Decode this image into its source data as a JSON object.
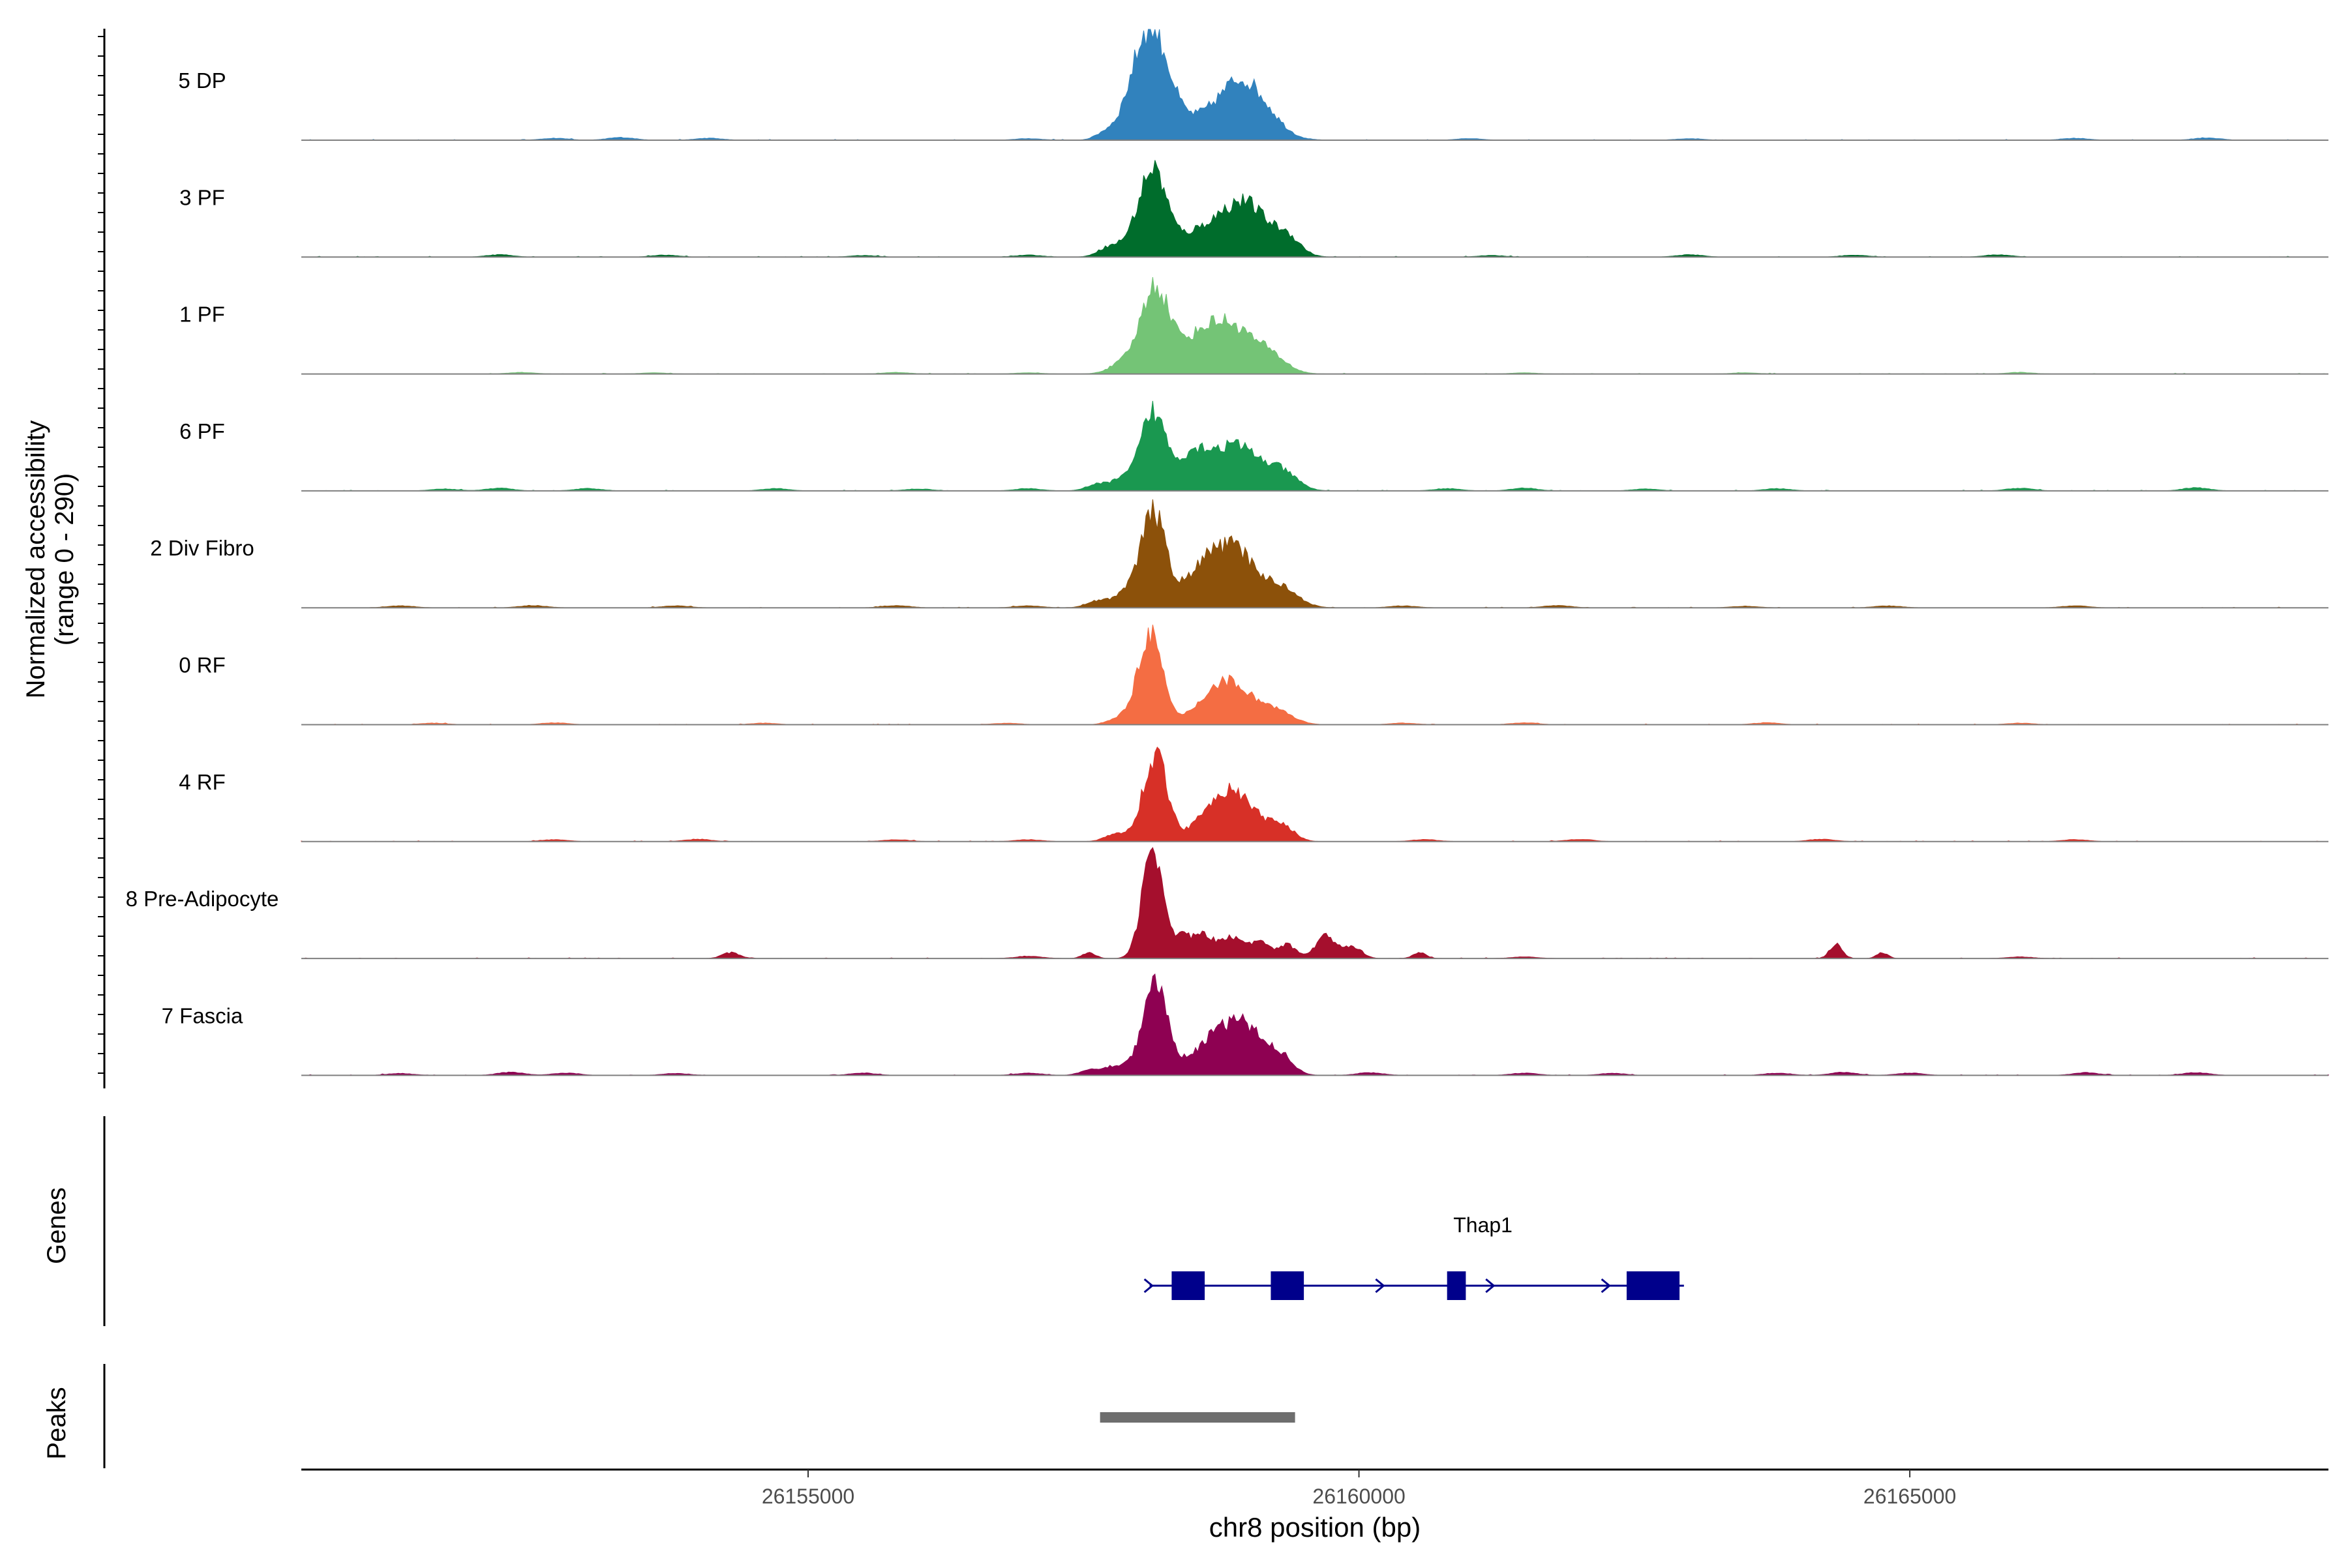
{
  "chart_data": {
    "type": "area",
    "chromosome": "chr8",
    "xlabel": "chr8 position (bp)",
    "xlim": [
      26150400,
      26168800
    ],
    "x_ticks": [
      {
        "value": 26155000,
        "label": "26155000"
      },
      {
        "value": 26160000,
        "label": "26160000"
      },
      {
        "value": 26165000,
        "label": "26165000"
      }
    ],
    "ylabel_line1": "Normalized accessibility",
    "ylabel_line2": "(range 0 - 290)",
    "ylim": [
      0,
      290
    ],
    "tracks": [
      {
        "name": "5 DP",
        "color": "#3182BD",
        "peaks": [
          [
            26158130,
            268,
            150
          ],
          [
            26158750,
            80,
            300
          ],
          [
            26158950,
            90,
            160
          ],
          [
            26157950,
            60,
            120
          ],
          [
            26157700,
            18,
            90
          ],
          [
            26159200,
            30,
            140
          ]
        ],
        "noise": [
          [
            26152700,
            5
          ],
          [
            26153300,
            7
          ],
          [
            26154100,
            5
          ],
          [
            26157000,
            4
          ],
          [
            26161000,
            4
          ],
          [
            26163000,
            4
          ],
          [
            26166500,
            5
          ],
          [
            26167700,
            6
          ]
        ]
      },
      {
        "name": "3 PF",
        "color": "#006D2C",
        "peaks": [
          [
            26158130,
            215,
            120
          ],
          [
            26158700,
            85,
            300
          ],
          [
            26159000,
            90,
            180
          ],
          [
            26157900,
            30,
            120
          ],
          [
            26159350,
            45,
            120
          ],
          [
            26157700,
            18,
            90
          ]
        ],
        "noise": [
          [
            26152200,
            6
          ],
          [
            26153700,
            5
          ],
          [
            26155500,
            4
          ],
          [
            26157000,
            5
          ],
          [
            26161200,
            4
          ],
          [
            26163000,
            6
          ],
          [
            26164500,
            5
          ],
          [
            26165800,
            6
          ]
        ]
      },
      {
        "name": "1 PF",
        "color": "#74C476",
        "peaks": [
          [
            26158150,
            225,
            130
          ],
          [
            26158800,
            130,
            230
          ],
          [
            26158500,
            45,
            160
          ],
          [
            26159200,
            35,
            150
          ],
          [
            26157850,
            25,
            120
          ]
        ],
        "noise": [
          [
            26152400,
            4
          ],
          [
            26153600,
            3
          ],
          [
            26155800,
            4
          ],
          [
            26157000,
            3
          ],
          [
            26161500,
            3
          ],
          [
            26163500,
            3
          ],
          [
            26166000,
            4
          ]
        ]
      },
      {
        "name": "6 PF",
        "color": "#1A9850",
        "peaks": [
          [
            26158130,
            200,
            110
          ],
          [
            26158500,
            95,
            160
          ],
          [
            26158900,
            115,
            200
          ],
          [
            26159300,
            45,
            140
          ],
          [
            26157850,
            30,
            120
          ],
          [
            26157600,
            14,
            90
          ]
        ],
        "noise": [
          [
            26151700,
            5
          ],
          [
            26152200,
            7
          ],
          [
            26153000,
            6
          ],
          [
            26154700,
            6
          ],
          [
            26156000,
            5
          ],
          [
            26157000,
            6
          ],
          [
            26160800,
            6
          ],
          [
            26161500,
            7
          ],
          [
            26162600,
            5
          ],
          [
            26163800,
            6
          ],
          [
            26166000,
            7
          ],
          [
            26167600,
            8
          ]
        ]
      },
      {
        "name": "2 Div Fibro",
        "color": "#8C510A",
        "peaks": [
          [
            26158130,
            245,
            115
          ],
          [
            26158600,
            100,
            180
          ],
          [
            26158900,
            130,
            180
          ],
          [
            26159300,
            50,
            150
          ],
          [
            26157850,
            30,
            120
          ],
          [
            26157600,
            15,
            90
          ]
        ],
        "noise": [
          [
            26151300,
            5
          ],
          [
            26152500,
            6
          ],
          [
            26153800,
            5
          ],
          [
            26155800,
            6
          ],
          [
            26157000,
            5
          ],
          [
            26160400,
            5
          ],
          [
            26161800,
            6
          ],
          [
            26163500,
            4
          ],
          [
            26164800,
            5
          ],
          [
            26166500,
            5
          ]
        ]
      },
      {
        "name": "0 RF",
        "color": "#F46D43",
        "peaks": [
          [
            26158100,
            240,
            110
          ],
          [
            26158800,
            115,
            220
          ],
          [
            26159250,
            30,
            150
          ],
          [
            26157800,
            15,
            90
          ]
        ],
        "noise": [
          [
            26151600,
            4
          ],
          [
            26152700,
            5
          ],
          [
            26154600,
            4
          ],
          [
            26156800,
            4
          ],
          [
            26160400,
            4
          ],
          [
            26161500,
            5
          ],
          [
            26163700,
            5
          ],
          [
            26166000,
            4
          ]
        ]
      },
      {
        "name": "4 RF",
        "color": "#D73027",
        "peaks": [
          [
            26158150,
            225,
            110
          ],
          [
            26158700,
            90,
            170
          ],
          [
            26158950,
            85,
            170
          ],
          [
            26159300,
            40,
            110
          ],
          [
            26157800,
            20,
            100
          ]
        ],
        "noise": [
          [
            26152700,
            5
          ],
          [
            26154000,
            6
          ],
          [
            26155800,
            5
          ],
          [
            26157000,
            5
          ],
          [
            26160600,
            5
          ],
          [
            26162000,
            6
          ],
          [
            26164200,
            6
          ],
          [
            26166500,
            5
          ]
        ]
      },
      {
        "name": "8 Pre-Adipocyte",
        "color": "#A50F2D",
        "peaks": [
          [
            26158130,
            285,
            95
          ],
          [
            26158400,
            55,
            80
          ],
          [
            26158600,
            60,
            90
          ],
          [
            26158850,
            55,
            90
          ],
          [
            26159100,
            45,
            90
          ],
          [
            26159350,
            35,
            80
          ],
          [
            26159700,
            60,
            90
          ],
          [
            26159950,
            30,
            80
          ],
          [
            26157550,
            15,
            60
          ],
          [
            26160550,
            15,
            60
          ],
          [
            26164330,
            38,
            55
          ],
          [
            26164750,
            15,
            50
          ],
          [
            26154300,
            15,
            80
          ]
        ],
        "noise": [
          [
            26157000,
            6
          ],
          [
            26161500,
            4
          ],
          [
            26166000,
            4
          ]
        ]
      },
      {
        "name": "7 Fascia",
        "color": "#8E0152",
        "peaks": [
          [
            26158150,
            230,
            115
          ],
          [
            26158700,
            95,
            200
          ],
          [
            26159000,
            100,
            170
          ],
          [
            26159300,
            40,
            110
          ],
          [
            26157800,
            25,
            120
          ],
          [
            26157550,
            12,
            90
          ]
        ],
        "noise": [
          [
            26151300,
            5
          ],
          [
            26152300,
            8
          ],
          [
            26152800,
            6
          ],
          [
            26153800,
            5
          ],
          [
            26155500,
            6
          ],
          [
            26157000,
            6
          ],
          [
            26160100,
            7
          ],
          [
            26161500,
            6
          ],
          [
            26162300,
            5
          ],
          [
            26163800,
            6
          ],
          [
            26164400,
            8
          ],
          [
            26165000,
            6
          ],
          [
            26166600,
            7
          ],
          [
            26167600,
            7
          ]
        ]
      }
    ],
    "genes_label": "Genes",
    "gene": {
      "name": "Thap1",
      "start": 26158100,
      "end": 26162950,
      "color": "#00008B",
      "exons": [
        [
          26158300,
          26158600
        ],
        [
          26159200,
          26159500
        ],
        [
          26160800,
          26160970
        ],
        [
          26162430,
          26162910
        ]
      ],
      "arrows": [
        26158100,
        26160200,
        26161200,
        26162250
      ]
    },
    "peaks_label": "Peaks",
    "peak_regions": [
      {
        "start": 26157650,
        "end": 26159420,
        "color": "#6E6E6E"
      }
    ]
  }
}
